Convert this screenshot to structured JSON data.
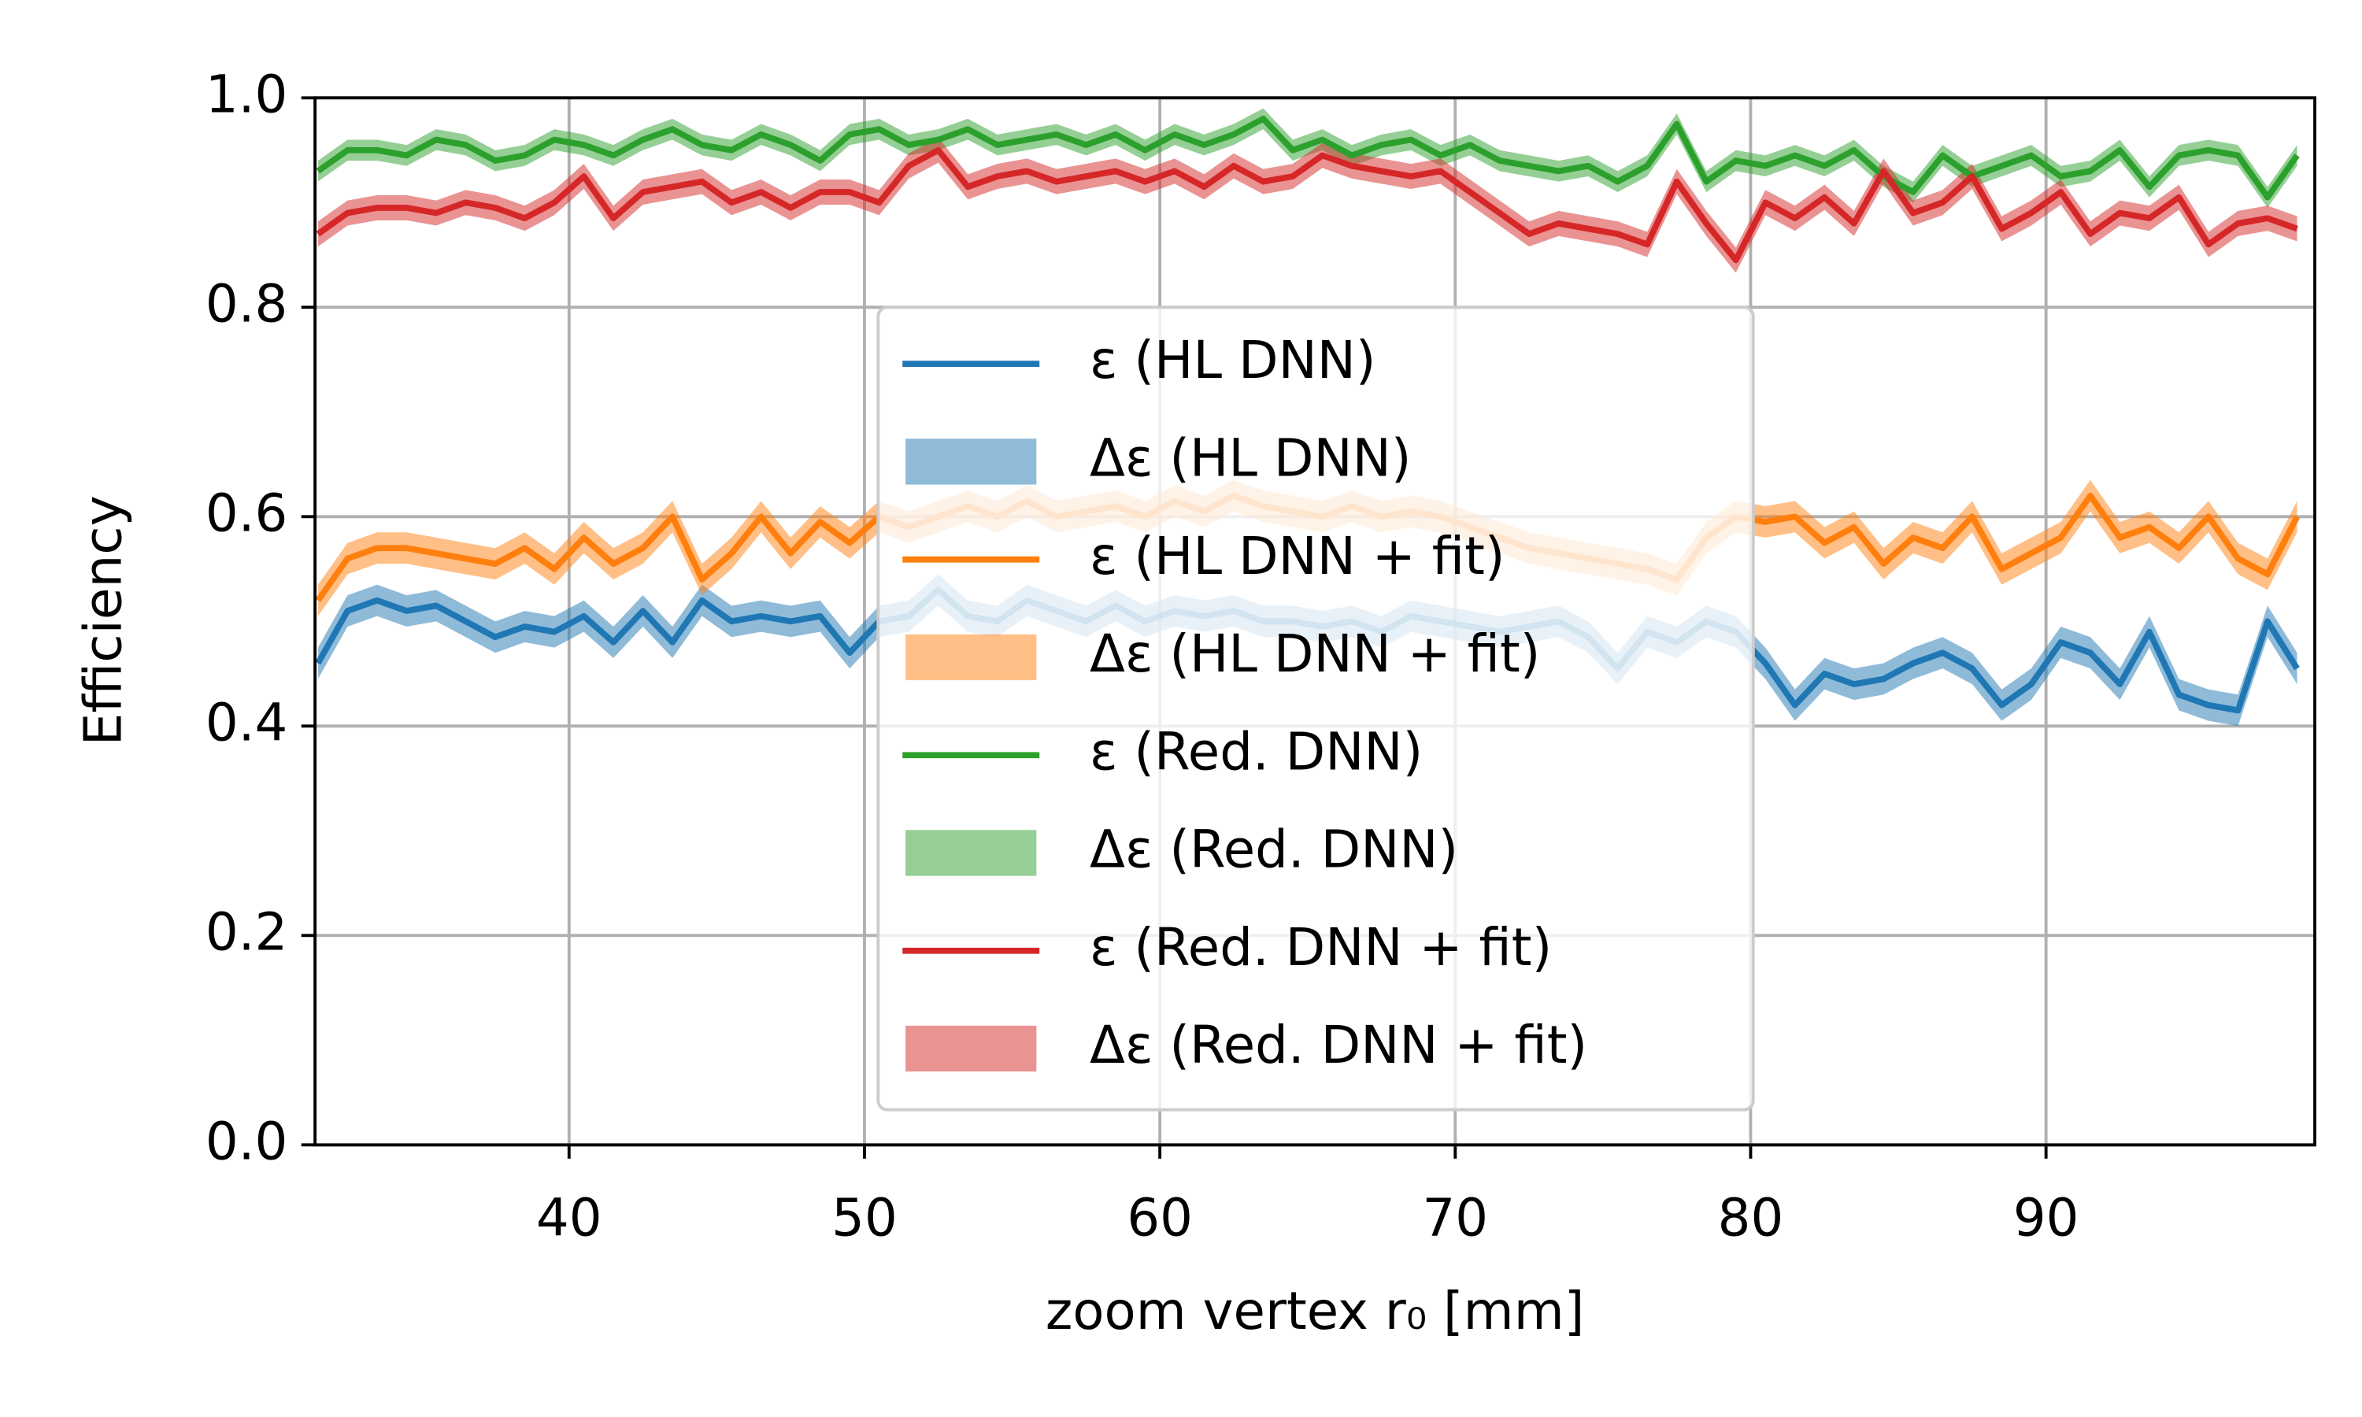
{
  "chart_data": {
    "type": "line",
    "xlabel": "zoom vertex r₀ [mm]",
    "ylabel": "Efficiency",
    "x": [
      31.5,
      32.5,
      33.5,
      34.5,
      35.5,
      36.5,
      37.5,
      38.5,
      39.5,
      40.5,
      41.5,
      42.5,
      43.5,
      44.5,
      45.5,
      46.5,
      47.5,
      48.5,
      49.5,
      50.5,
      51.5,
      52.5,
      53.5,
      54.5,
      55.5,
      56.5,
      57.5,
      58.5,
      59.5,
      60.5,
      61.5,
      62.5,
      63.5,
      64.5,
      65.5,
      66.5,
      67.5,
      68.5,
      69.5,
      70.5,
      71.5,
      72.5,
      73.5,
      74.5,
      75.5,
      76.5,
      77.5,
      78.5,
      79.5,
      80.5,
      81.5,
      82.5,
      83.5,
      84.5,
      85.5,
      86.5,
      87.5,
      88.5,
      89.5,
      90.5,
      91.5,
      92.5,
      93.5,
      94.5,
      95.5,
      96.5,
      97.5,
      98.5
    ],
    "series": [
      {
        "name": "ε (HL DNN)",
        "band_name": "Δε (HL DNN)",
        "color": "#1f77b4",
        "error": 0.015,
        "values": [
          0.46,
          0.51,
          0.52,
          0.51,
          0.515,
          0.5,
          0.485,
          0.495,
          0.49,
          0.505,
          0.48,
          0.51,
          0.48,
          0.52,
          0.5,
          0.505,
          0.5,
          0.505,
          0.47,
          0.5,
          0.505,
          0.53,
          0.505,
          0.5,
          0.52,
          0.51,
          0.5,
          0.515,
          0.5,
          0.51,
          0.505,
          0.51,
          0.5,
          0.5,
          0.495,
          0.5,
          0.49,
          0.505,
          0.5,
          0.495,
          0.49,
          0.495,
          0.5,
          0.485,
          0.455,
          0.49,
          0.48,
          0.5,
          0.49,
          0.46,
          0.42,
          0.45,
          0.44,
          0.445,
          0.46,
          0.47,
          0.455,
          0.42,
          0.44,
          0.48,
          0.47,
          0.44,
          0.49,
          0.43,
          0.42,
          0.415,
          0.5,
          0.455
        ]
      },
      {
        "name": "ε (HL DNN + fit)",
        "band_name": "Δε (HL DNN + fit)",
        "color": "#ff7f0e",
        "error": 0.015,
        "values": [
          0.52,
          0.56,
          0.57,
          0.57,
          0.565,
          0.56,
          0.555,
          0.57,
          0.55,
          0.58,
          0.555,
          0.57,
          0.6,
          0.54,
          0.565,
          0.6,
          0.565,
          0.595,
          0.575,
          0.6,
          0.59,
          0.6,
          0.61,
          0.6,
          0.615,
          0.6,
          0.605,
          0.61,
          0.6,
          0.615,
          0.605,
          0.62,
          0.61,
          0.605,
          0.6,
          0.61,
          0.6,
          0.605,
          0.6,
          0.59,
          0.58,
          0.57,
          0.565,
          0.56,
          0.555,
          0.55,
          0.54,
          0.58,
          0.6,
          0.595,
          0.6,
          0.575,
          0.59,
          0.555,
          0.58,
          0.57,
          0.6,
          0.55,
          0.565,
          0.58,
          0.62,
          0.58,
          0.59,
          0.57,
          0.6,
          0.56,
          0.545,
          0.6
        ]
      },
      {
        "name": "ε (Red. DNN)",
        "band_name": "Δε (Red. DNN)",
        "color": "#2ca02c",
        "error": 0.01,
        "values": [
          0.93,
          0.95,
          0.95,
          0.945,
          0.96,
          0.955,
          0.94,
          0.945,
          0.96,
          0.955,
          0.945,
          0.96,
          0.97,
          0.955,
          0.95,
          0.965,
          0.955,
          0.94,
          0.965,
          0.97,
          0.955,
          0.96,
          0.97,
          0.955,
          0.96,
          0.965,
          0.955,
          0.965,
          0.95,
          0.965,
          0.955,
          0.965,
          0.98,
          0.95,
          0.96,
          0.945,
          0.955,
          0.96,
          0.945,
          0.955,
          0.94,
          0.935,
          0.93,
          0.935,
          0.92,
          0.935,
          0.975,
          0.92,
          0.94,
          0.935,
          0.945,
          0.935,
          0.95,
          0.925,
          0.91,
          0.945,
          0.925,
          0.935,
          0.945,
          0.925,
          0.93,
          0.95,
          0.915,
          0.945,
          0.95,
          0.945,
          0.905,
          0.945
        ]
      },
      {
        "name": "ε (Red. DNN + fit)",
        "band_name": "Δε (Red. DNN + fit)",
        "color": "#d62728",
        "error": 0.012,
        "values": [
          0.87,
          0.89,
          0.895,
          0.895,
          0.89,
          0.9,
          0.895,
          0.885,
          0.9,
          0.925,
          0.885,
          0.91,
          0.915,
          0.92,
          0.9,
          0.91,
          0.895,
          0.91,
          0.91,
          0.9,
          0.935,
          0.95,
          0.915,
          0.925,
          0.93,
          0.92,
          0.925,
          0.93,
          0.92,
          0.93,
          0.915,
          0.935,
          0.92,
          0.925,
          0.945,
          0.935,
          0.93,
          0.925,
          0.93,
          0.91,
          0.89,
          0.87,
          0.88,
          0.875,
          0.87,
          0.86,
          0.92,
          0.88,
          0.845,
          0.9,
          0.885,
          0.905,
          0.88,
          0.93,
          0.89,
          0.9,
          0.925,
          0.875,
          0.89,
          0.91,
          0.87,
          0.89,
          0.885,
          0.905,
          0.86,
          0.88,
          0.885,
          0.875
        ]
      }
    ],
    "xlim": [
      31.4,
      99.1
    ],
    "ylim": [
      0,
      1
    ],
    "xticks": [
      40,
      50,
      60,
      70,
      80,
      90
    ],
    "yticks": [
      {
        "value": 0,
        "label": "0.0"
      },
      0.2,
      0.4,
      0.6,
      0.8,
      {
        "value": 1,
        "label": "1.0"
      }
    ],
    "grid": true,
    "legend": "center"
  }
}
